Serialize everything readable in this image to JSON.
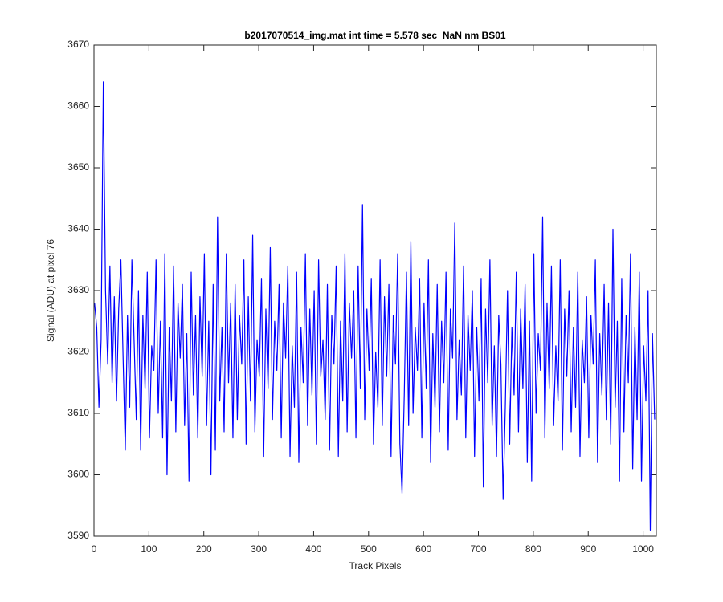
{
  "chart_data": {
    "type": "line",
    "title": "b2017070514_img.mat int time = 5.578 sec  NaN nm BS01",
    "x_label": "Track Pixels",
    "y_label": "Signal (ADU) at pixel 76",
    "color": "#0000ff",
    "x": [
      1,
      5,
      9,
      13,
      17,
      21,
      25,
      29,
      33,
      37,
      41,
      45,
      49,
      53,
      57,
      61,
      65,
      69,
      73,
      77,
      81,
      85,
      89,
      93,
      97,
      101,
      105,
      109,
      113,
      117,
      121,
      125,
      129,
      133,
      137,
      141,
      145,
      149,
      153,
      157,
      161,
      165,
      169,
      173,
      177,
      181,
      185,
      189,
      193,
      197,
      201,
      205,
      209,
      213,
      217,
      221,
      225,
      229,
      233,
      237,
      241,
      245,
      249,
      253,
      257,
      261,
      265,
      269,
      273,
      277,
      281,
      285,
      289,
      293,
      297,
      301,
      305,
      309,
      313,
      317,
      321,
      325,
      329,
      333,
      337,
      341,
      345,
      349,
      353,
      357,
      361,
      365,
      369,
      373,
      377,
      381,
      385,
      389,
      393,
      397,
      401,
      405,
      409,
      413,
      417,
      421,
      425,
      429,
      433,
      437,
      441,
      445,
      449,
      453,
      457,
      461,
      465,
      469,
      473,
      477,
      481,
      485,
      489,
      493,
      497,
      501,
      505,
      509,
      513,
      517,
      521,
      525,
      529,
      533,
      537,
      541,
      545,
      549,
      553,
      557,
      561,
      565,
      569,
      573,
      577,
      581,
      585,
      589,
      593,
      597,
      601,
      605,
      609,
      613,
      617,
      621,
      625,
      629,
      633,
      637,
      641,
      645,
      649,
      653,
      657,
      661,
      665,
      669,
      673,
      677,
      681,
      685,
      689,
      693,
      697,
      701,
      705,
      709,
      713,
      717,
      721,
      725,
      729,
      733,
      737,
      741,
      745,
      749,
      753,
      757,
      761,
      765,
      769,
      773,
      777,
      781,
      785,
      789,
      793,
      797,
      801,
      805,
      809,
      813,
      817,
      821,
      825,
      829,
      833,
      837,
      841,
      845,
      849,
      853,
      857,
      861,
      865,
      869,
      873,
      877,
      881,
      885,
      889,
      893,
      897,
      901,
      905,
      909,
      913,
      917,
      921,
      925,
      929,
      933,
      937,
      941,
      945,
      949,
      953,
      957,
      961,
      965,
      969,
      973,
      977,
      981,
      985,
      989,
      993,
      997,
      1001,
      1005,
      1009,
      1013,
      1017,
      1021
    ],
    "values": [
      3628,
      3624,
      3611,
      3622,
      3664,
      3630,
      3618,
      3634,
      3615,
      3629,
      3612,
      3627,
      3635,
      3619,
      3604,
      3626,
      3611,
      3635,
      3622,
      3609,
      3630,
      3604,
      3626,
      3614,
      3633,
      3606,
      3621,
      3617,
      3635,
      3610,
      3625,
      3606,
      3636,
      3600,
      3624,
      3612,
      3634,
      3607,
      3628,
      3619,
      3631,
      3608,
      3623,
      3599,
      3633,
      3613,
      3626,
      3606,
      3629,
      3616,
      3636,
      3608,
      3625,
      3600,
      3631,
      3604,
      3642,
      3612,
      3624,
      3607,
      3636,
      3615,
      3628,
      3606,
      3631,
      3609,
      3626,
      3618,
      3635,
      3605,
      3629,
      3612,
      3639,
      3607,
      3622,
      3616,
      3632,
      3603,
      3627,
      3614,
      3637,
      3609,
      3625,
      3617,
      3631,
      3606,
      3628,
      3619,
      3634,
      3603,
      3621,
      3611,
      3633,
      3602,
      3624,
      3615,
      3636,
      3608,
      3627,
      3613,
      3630,
      3605,
      3635,
      3616,
      3622,
      3609,
      3631,
      3604,
      3626,
      3618,
      3634,
      3603,
      3625,
      3612,
      3636,
      3607,
      3628,
      3619,
      3630,
      3606,
      3634,
      3614,
      3644,
      3609,
      3627,
      3617,
      3632,
      3605,
      3620,
      3611,
      3635,
      3608,
      3629,
      3616,
      3631,
      3603,
      3626,
      3618,
      3636,
      3605,
      3597,
      3613,
      3633,
      3608,
      3638,
      3610,
      3624,
      3617,
      3632,
      3606,
      3628,
      3614,
      3635,
      3602,
      3623,
      3611,
      3631,
      3607,
      3625,
      3615,
      3633,
      3604,
      3627,
      3619,
      3641,
      3609,
      3622,
      3613,
      3634,
      3606,
      3626,
      3617,
      3630,
      3603,
      3624,
      3612,
      3632,
      3598,
      3627,
      3615,
      3635,
      3608,
      3621,
      3603,
      3626,
      3618,
      3596,
      3611,
      3630,
      3605,
      3624,
      3613,
      3633,
      3607,
      3627,
      3614,
      3631,
      3602,
      3625,
      3599,
      3636,
      3610,
      3623,
      3617,
      3642,
      3606,
      3628,
      3614,
      3634,
      3608,
      3621,
      3612,
      3635,
      3604,
      3627,
      3616,
      3630,
      3607,
      3624,
      3611,
      3633,
      3603,
      3622,
      3615,
      3629,
      3606,
      3626,
      3618,
      3635,
      3602,
      3623,
      3613,
      3631,
      3609,
      3628,
      3605,
      3640,
      3611,
      3625,
      3599,
      3632,
      3607,
      3626,
      3615,
      3636,
      3601,
      3624,
      3609,
      3633,
      3599,
      3621,
      3612,
      3630,
      3591,
      3623,
      3609
    ],
    "xlim": [
      0,
      1024
    ],
    "ylim": [
      3590,
      3670
    ],
    "xticks": [
      0,
      100,
      200,
      300,
      400,
      500,
      600,
      700,
      800,
      900,
      1000
    ],
    "yticks": [
      3590,
      3600,
      3610,
      3620,
      3630,
      3640,
      3650,
      3660,
      3670
    ]
  }
}
